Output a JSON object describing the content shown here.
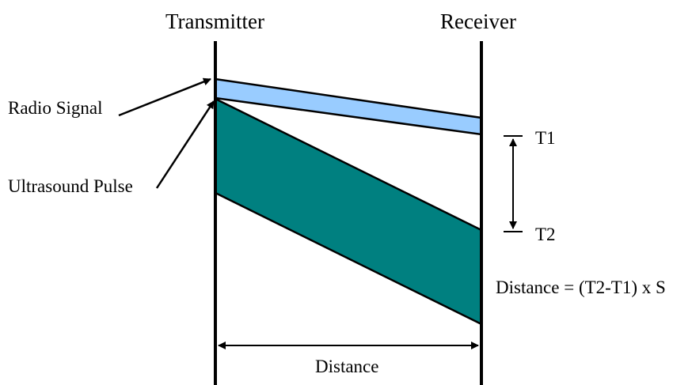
{
  "labels": {
    "transmitter": "Transmitter",
    "receiver": "Receiver",
    "radio_signal": "Radio Signal",
    "ultrasound_pulse": "Ultrasound Pulse",
    "t1": "T1",
    "t2": "T2",
    "formula": "Distance = (T2-T1) x S",
    "distance": "Distance"
  },
  "colors": {
    "radio_band": "#99ccff",
    "ultrasound_band": "#008080",
    "line": "#000000"
  }
}
